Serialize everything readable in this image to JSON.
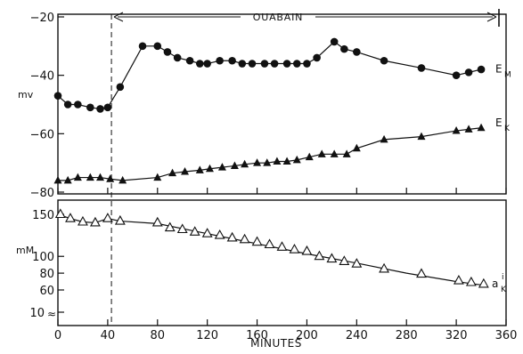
{
  "chart_data": [
    {
      "type": "scatter",
      "title": "",
      "xlabel": "",
      "ylabel": "mv",
      "xlim": [
        0,
        360
      ],
      "ylim": [
        -80,
        -20
      ],
      "yticks": [
        -80,
        -60,
        -40,
        -20
      ],
      "grid": false,
      "annotation": {
        "text": "OUABAIN",
        "x_start": 43,
        "x_end": 340,
        "note": "arrow spanning ouabain application"
      },
      "marker_line_x": 43,
      "series": [
        {
          "name": "E_M",
          "label": {
            "main": "E",
            "sub": "M"
          },
          "marker": "filled-circle",
          "connected": true,
          "points": [
            [
              0,
              -47
            ],
            [
              8,
              -50
            ],
            [
              16,
              -50
            ],
            [
              26,
              -51
            ],
            [
              34,
              -51.5
            ],
            [
              40,
              -51
            ],
            [
              50,
              -44
            ],
            [
              68,
              -30
            ],
            [
              80,
              -30
            ],
            [
              88,
              -32
            ],
            [
              96,
              -34
            ],
            [
              106,
              -35
            ],
            [
              114,
              -36
            ],
            [
              120,
              -36
            ],
            [
              130,
              -35
            ],
            [
              140,
              -35
            ],
            [
              148,
              -36
            ],
            [
              156,
              -36
            ],
            [
              166,
              -36
            ],
            [
              174,
              -36
            ],
            [
              184,
              -36
            ],
            [
              192,
              -36
            ],
            [
              200,
              -36
            ],
            [
              208,
              -34
            ],
            [
              222,
              -28.5
            ],
            [
              230,
              -31
            ],
            [
              240,
              -32
            ],
            [
              262,
              -35
            ],
            [
              292,
              -37.5
            ],
            [
              320,
              -40
            ],
            [
              330,
              -39
            ],
            [
              340,
              -38
            ]
          ]
        },
        {
          "name": "E_K",
          "label": {
            "main": "E",
            "sub": "K"
          },
          "marker": "filled-triangle",
          "connected": true,
          "points": [
            [
              0,
              -76
            ],
            [
              8,
              -76
            ],
            [
              16,
              -75
            ],
            [
              26,
              -75
            ],
            [
              34,
              -75
            ],
            [
              42,
              -75.5
            ],
            [
              52,
              -76
            ],
            [
              80,
              -75
            ],
            [
              92,
              -73.5
            ],
            [
              102,
              -73
            ],
            [
              114,
              -72.5
            ],
            [
              122,
              -72
            ],
            [
              132,
              -71.5
            ],
            [
              142,
              -71
            ],
            [
              150,
              -70.5
            ],
            [
              160,
              -70
            ],
            [
              168,
              -70
            ],
            [
              176,
              -69.5
            ],
            [
              184,
              -69.5
            ],
            [
              192,
              -69
            ],
            [
              202,
              -68
            ],
            [
              212,
              -67
            ],
            [
              222,
              -67
            ],
            [
              232,
              -67
            ],
            [
              240,
              -65
            ],
            [
              262,
              -62
            ],
            [
              292,
              -61
            ],
            [
              320,
              -59
            ],
            [
              330,
              -58.5
            ],
            [
              340,
              -58
            ]
          ]
        }
      ]
    },
    {
      "type": "scatter",
      "title": "",
      "xlabel": "MINUTES",
      "ylabel": "mM",
      "xlim": [
        0,
        360
      ],
      "ylim": [
        60,
        150
      ],
      "axis_break": {
        "lower_tick": 10,
        "symbol": "≈"
      },
      "xticks": [
        0,
        40,
        80,
        120,
        160,
        200,
        240,
        280,
        320,
        360
      ],
      "yticks": [
        60,
        80,
        100,
        150
      ],
      "grid": false,
      "marker_line_x": 43,
      "series": [
        {
          "name": "a_K^i",
          "label": {
            "main": "a",
            "sub": "K",
            "sup": "i"
          },
          "marker": "open-triangle",
          "fit_line": [
            [
              0,
              150
            ],
            [
              10,
              145
            ],
            [
              20,
              141
            ],
            [
              30,
              140
            ],
            [
              40,
              145
            ],
            [
              50,
              142
            ],
            [
              80,
              139
            ],
            [
              120,
              127
            ],
            [
              160,
              115
            ],
            [
              200,
              103
            ],
            [
              240,
              92
            ],
            [
              280,
              80
            ],
            [
              320,
              70
            ],
            [
              340,
              66
            ]
          ],
          "points": [
            [
              2,
              150
            ],
            [
              10,
              145
            ],
            [
              20,
              141
            ],
            [
              30,
              140
            ],
            [
              40,
              145
            ],
            [
              50,
              142
            ],
            [
              80,
              140
            ],
            [
              90,
              134
            ],
            [
              100,
              132
            ],
            [
              110,
              129
            ],
            [
              120,
              127
            ],
            [
              130,
              125
            ],
            [
              140,
              122
            ],
            [
              150,
              120
            ],
            [
              160,
              117
            ],
            [
              170,
              114
            ],
            [
              180,
              111
            ],
            [
              190,
              108
            ],
            [
              200,
              106
            ],
            [
              210,
              100
            ],
            [
              220,
              97
            ],
            [
              230,
              94
            ],
            [
              240,
              91
            ],
            [
              262,
              85
            ],
            [
              292,
              79
            ],
            [
              322,
              71
            ],
            [
              332,
              69
            ],
            [
              342,
              67
            ]
          ]
        }
      ]
    }
  ]
}
